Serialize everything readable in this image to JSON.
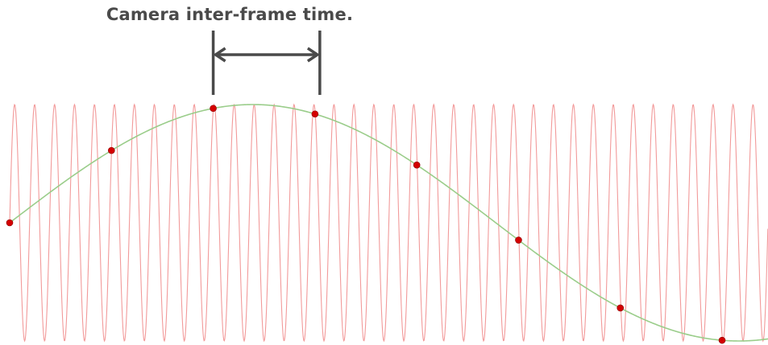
{
  "annotation": {
    "label": "Camera inter-frame time."
  },
  "figure": {
    "description_colors": {
      "signal": "#f29a9a",
      "aliased_wave": "#9acd8a",
      "samples": "#d40000",
      "annotation": "#4a4a4a"
    },
    "signal_cycles": 38,
    "aliased_cycles": 0.78,
    "sample_count": 8,
    "sample_interval_in_signal_cycles": 5.1
  }
}
